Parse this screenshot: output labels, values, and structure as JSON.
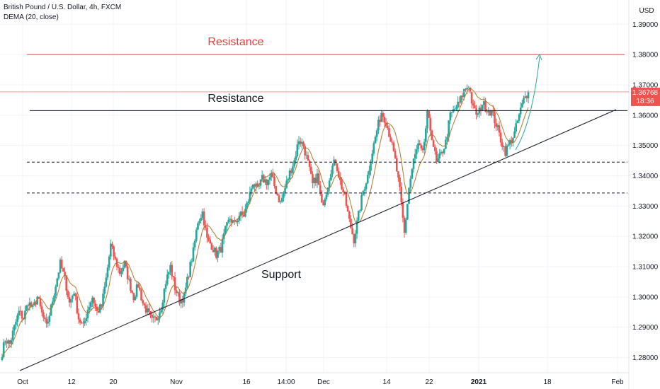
{
  "header": {
    "symbol_line": "British Pound / U.S. Dollar, 4h, FXCM",
    "indicator_line": "DEMA (20, close)"
  },
  "chart_data": {
    "type": "candlestick",
    "currency_label": "USD",
    "y_ticks": [
      "1.28000",
      "1.29000",
      "1.30000",
      "1.31000",
      "1.32000",
      "1.33000",
      "1.34000",
      "1.35000",
      "1.36000",
      "1.37000",
      "1.38000",
      "1.39000"
    ],
    "y_tick_values": [
      1.28,
      1.29,
      1.3,
      1.31,
      1.32,
      1.33,
      1.34,
      1.35,
      1.36,
      1.37,
      1.38,
      1.39
    ],
    "ylim": [
      1.275,
      1.398
    ],
    "x_labels": [
      "Oct",
      "12",
      "20",
      "Nov",
      "16",
      "14:00",
      "Dec",
      "14",
      "22",
      "2021",
      "18",
      "Feb"
    ],
    "price_label": "1.36768",
    "price_value": 1.36768,
    "countdown_label": "18:36",
    "last_value_line_color": "#ef9a9a",
    "up_color": "#26a69a",
    "down_color": "#ef5350",
    "annotations": [
      {
        "text": "Resistance",
        "color": "#ef3b3b",
        "level": 1.38,
        "style": "solid"
      },
      {
        "text": "Resistance",
        "color": "#131722",
        "level": 1.3615,
        "style": "solid"
      },
      {
        "text": "",
        "color": "#131722",
        "level": 1.3445,
        "style": "dashed"
      },
      {
        "text": "",
        "color": "#131722",
        "level": 1.3343,
        "style": "dashed"
      },
      {
        "text": "Support",
        "color": "#131722",
        "style": "trendline"
      }
    ],
    "closes": [
      1.2795,
      1.286,
      1.2845,
      1.29,
      1.295,
      1.293,
      1.2985,
      1.296,
      1.3,
      1.2945,
      1.29,
      1.2965,
      1.304,
      1.311,
      1.306,
      1.298,
      1.302,
      1.293,
      1.29,
      1.296,
      1.3,
      1.295,
      1.297,
      1.306,
      1.317,
      1.312,
      1.308,
      1.311,
      1.305,
      1.3,
      1.304,
      1.298,
      1.295,
      1.292,
      1.293,
      1.297,
      1.305,
      1.31,
      1.303,
      1.299,
      1.3,
      1.308,
      1.315,
      1.325,
      1.328,
      1.319,
      1.317,
      1.314,
      1.316,
      1.322,
      1.326,
      1.324,
      1.327,
      1.327,
      1.332,
      1.338,
      1.335,
      1.339,
      1.338,
      1.34,
      1.335,
      1.331,
      1.336,
      1.341,
      1.345,
      1.352,
      1.35,
      1.344,
      1.337,
      1.34,
      1.33,
      1.335,
      1.342,
      1.345,
      1.338,
      1.333,
      1.325,
      1.319,
      1.327,
      1.335,
      1.34,
      1.348,
      1.355,
      1.361,
      1.358,
      1.352,
      1.345,
      1.335,
      1.321,
      1.336,
      1.345,
      1.35,
      1.347,
      1.36,
      1.353,
      1.344,
      1.347,
      1.351,
      1.36,
      1.362,
      1.364,
      1.368,
      1.37,
      1.362,
      1.36,
      1.364,
      1.362,
      1.361,
      1.357,
      1.352,
      1.348,
      1.351,
      1.354,
      1.36,
      1.365,
      1.3677
    ]
  }
}
